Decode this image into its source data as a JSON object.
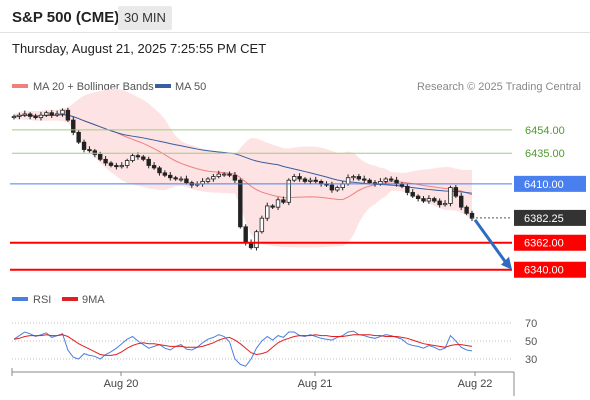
{
  "header": {
    "title": "S&P 500 (CME)",
    "timeframe": "30 MIN",
    "datetime": "Thursday, August 21, 2025 7:25:55 PM CET"
  },
  "legend": {
    "ma20": "MA 20 + Bollinger Bands",
    "ma50": "MA 50",
    "copyright": "Research © 2025 Trading Central",
    "rsi": "RSI",
    "rsi_ma": "9MA"
  },
  "colors": {
    "up_candle": "#ffffff",
    "down_candle": "#222222",
    "ma20": "#f08080",
    "ma50": "#3a5ea0",
    "bollinger_fill": "#fde3e3",
    "green_level": "#9fcf7a",
    "blue_level": "#4a7ff0",
    "red_level": "#ff0000",
    "current_price_label": "#333333",
    "arrow": "#2d6cc0",
    "rsi": "#4a7fe0",
    "rsi_ma": "#e02020"
  },
  "chart_data": [
    {
      "type": "candlestick",
      "title": "S&P 500 (CME)",
      "timeframe": "30 MIN",
      "x_tick_labels": [
        "Aug 20",
        "Aug 21",
        "Aug 22"
      ],
      "ylim": [
        6330,
        6480
      ],
      "levels": [
        {
          "value": 6454.0,
          "label": "6454.00",
          "kind": "resistance"
        },
        {
          "value": 6435.0,
          "label": "6435.00",
          "kind": "resistance"
        },
        {
          "value": 6410.0,
          "label": "6410.00",
          "kind": "pivot"
        },
        {
          "value": 6382.25,
          "label": "6382.25",
          "kind": "current"
        },
        {
          "value": 6362.0,
          "label": "6362.00",
          "kind": "support"
        },
        {
          "value": 6340.0,
          "label": "6340.00",
          "kind": "support"
        }
      ],
      "close": [
        6465,
        6466,
        6467,
        6465,
        6464,
        6466,
        6468,
        6466,
        6467,
        6470,
        6462,
        6452,
        6444,
        6438,
        6437,
        6434,
        6430,
        6427,
        6425,
        6424,
        6425,
        6429,
        6433,
        6432,
        6430,
        6425,
        6423,
        6419,
        6417,
        6415,
        6414,
        6414,
        6411,
        6409,
        6410,
        6412,
        6414,
        6416,
        6418,
        6418,
        6417,
        6413,
        6375,
        6362,
        6358,
        6371,
        6382,
        6392,
        6391,
        6397,
        6395,
        6413,
        6416,
        6414,
        6412,
        6413,
        6412,
        6410,
        6409,
        6405,
        6407,
        6410,
        6415,
        6416,
        6414,
        6413,
        6411,
        6410,
        6412,
        6414,
        6413,
        6410,
        6408,
        6403,
        6400,
        6398,
        6396,
        6398,
        6396,
        6393,
        6394,
        6407,
        6400,
        6391,
        6386,
        6382
      ],
      "trade_idea_target": 6340.0,
      "series": [
        {
          "name": "MA 20 + Bollinger Bands",
          "kind": "ma_with_bands"
        },
        {
          "name": "MA 50",
          "kind": "ma"
        }
      ]
    },
    {
      "type": "line",
      "title": "RSI",
      "ylim": [
        20,
        80
      ],
      "y_tick_labels": [
        "70",
        "50",
        "30"
      ],
      "reference_lines": [
        70,
        50,
        30
      ],
      "series": [
        {
          "name": "RSI",
          "values": [
            52,
            56,
            60,
            58,
            55,
            57,
            59,
            54,
            56,
            58,
            40,
            32,
            30,
            36,
            34,
            33,
            30,
            35,
            38,
            42,
            47,
            52,
            55,
            50,
            46,
            42,
            44,
            46,
            42,
            40,
            44,
            46,
            41,
            40,
            43,
            48,
            52,
            54,
            57,
            55,
            49,
            30,
            24,
            22,
            30,
            42,
            50,
            55,
            51,
            56,
            54,
            60,
            60,
            56,
            55,
            57,
            55,
            53,
            52,
            51,
            54,
            56,
            60,
            61,
            57,
            56,
            54,
            53,
            55,
            57,
            56,
            54,
            52,
            47,
            45,
            44,
            42,
            45,
            43,
            40,
            42,
            56,
            50,
            43,
            40,
            39
          ]
        },
        {
          "name": "9MA",
          "values": [
            52,
            53,
            55,
            56,
            56,
            56,
            57,
            56,
            56,
            57,
            55,
            51,
            47,
            44,
            41,
            38,
            35,
            34,
            34,
            35,
            38,
            42,
            45,
            47,
            48,
            47,
            47,
            46,
            45,
            44,
            44,
            44,
            43,
            43,
            43,
            44,
            46,
            48,
            51,
            53,
            54,
            51,
            47,
            42,
            37,
            35,
            36,
            38,
            43,
            48,
            51,
            53,
            55,
            56,
            56,
            56,
            57,
            56,
            56,
            55,
            55,
            55,
            56,
            57,
            57,
            57,
            57,
            56,
            56,
            55,
            55,
            55,
            54,
            53,
            51,
            49,
            47,
            46,
            45,
            44,
            43,
            45,
            46,
            46,
            45,
            44
          ]
        }
      ]
    }
  ]
}
